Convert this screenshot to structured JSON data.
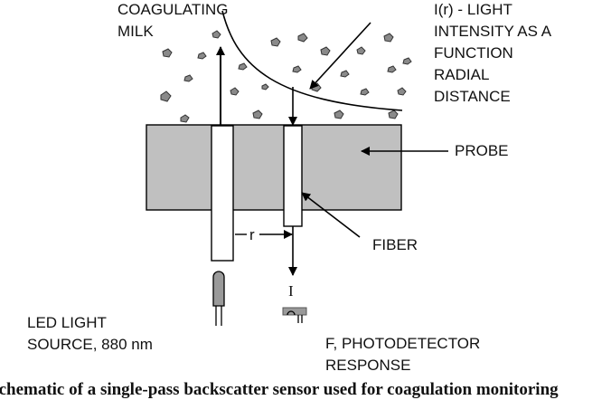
{
  "labels": {
    "coagulating": "COAGULATING",
    "milk": "MILK",
    "intensity_l1": "I(r) - LIGHT",
    "intensity_l2": "INTENSITY AS A",
    "intensity_l3": "FUNCTION",
    "intensity_l4": "RADIAL",
    "intensity_l5": "DISTANCE",
    "probe": "PROBE",
    "fiber": "FIBER",
    "r": "r",
    "i": "I",
    "led_l1": "LED LIGHT",
    "led_l2": "SOURCE, 880 nm",
    "det_l1": "F, PHOTODETECTOR",
    "det_l2": "RESPONSE",
    "caption": "Schematic of a single-pass backscatter sensor used for coagulation monitoring"
  },
  "colors": {
    "probe_fill": "#c0c0c0",
    "particle_fill": "#8a8a8a",
    "line": "#000000"
  }
}
